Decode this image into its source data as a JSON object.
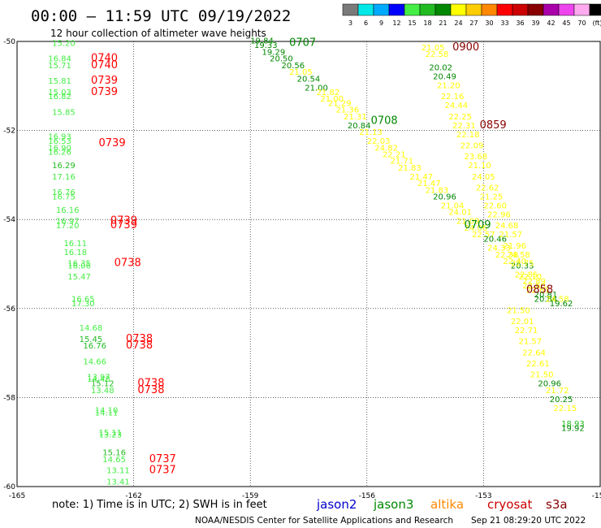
{
  "header": {
    "title": "00:00 – 11:59 UTC 09/19/2022",
    "subtitle": "12 hour collection of altimeter wave heights"
  },
  "colorbar": {
    "ticks": [
      "3",
      "6",
      "9",
      "12",
      "15",
      "18",
      "21",
      "24",
      "27",
      "30",
      "33",
      "36",
      "39",
      "42",
      "45",
      "70",
      "(ft)"
    ],
    "colors": [
      "#7a7a7a",
      "#00e8e8",
      "#00aaff",
      "#0000ff",
      "#44ee44",
      "#22bb22",
      "#008800",
      "#ffff00",
      "#ffcc00",
      "#ff8800",
      "#ff0000",
      "#cc0000",
      "#880000",
      "#aa00aa",
      "#ee44ee",
      "#ffaaee",
      "#000000"
    ]
  },
  "footer": {
    "note": "note:  1) Time is in UTC; 2) SWH is in feet",
    "missions": [
      {
        "name": "jason2",
        "color": "#0000cc"
      },
      {
        "name": "jason3",
        "color": "#008800"
      },
      {
        "name": "altika",
        "color": "#ff8800"
      },
      {
        "name": "cryosat",
        "color": "#cc0000"
      },
      {
        "name": "s3a",
        "color": "#880000"
      }
    ],
    "credit": "NOAA/NESDIS Center for Satellite Applications and Research",
    "timestamp": "Sep 21 08:29:20 UTC 2022"
  },
  "chart_data": {
    "type": "scatter",
    "title": "00:00 – 11:59 UTC 09/19/2022",
    "subtitle": "12 hour collection of altimeter wave heights",
    "xlabel": "",
    "ylabel": "",
    "xlim": [
      -165,
      -150
    ],
    "ylim": [
      -60,
      -50
    ],
    "x_ticks": [
      "-165",
      "-162",
      "-159",
      "-156",
      "-153",
      "-150"
    ],
    "y_ticks": [
      "-50",
      "-52",
      "-54",
      "-56",
      "-58",
      "-60"
    ],
    "grid": true,
    "value_colors": {
      "15": "#44ee44",
      "18": "#22bb22",
      "21": "#008800",
      "24": "#ffff00",
      "27": "#ffcc00",
      "33": "#ff0000",
      "39": "#880000"
    },
    "time_labels": [
      {
        "text": "0740",
        "lon": -163.1,
        "lat": -50.45,
        "color": "#ff0000"
      },
      {
        "text": "0740",
        "lon": -163.1,
        "lat": -50.6,
        "color": "#ff0000"
      },
      {
        "text": "0739",
        "lon": -163.1,
        "lat": -50.95,
        "color": "#ff0000"
      },
      {
        "text": "0739",
        "lon": -163.1,
        "lat": -51.2,
        "color": "#ff0000"
      },
      {
        "text": "0739",
        "lon": -162.9,
        "lat": -52.35,
        "color": "#ff0000"
      },
      {
        "text": "0739",
        "lon": -162.6,
        "lat": -54.1,
        "color": "#ff0000"
      },
      {
        "text": "0739",
        "lon": -162.6,
        "lat": -54.2,
        "color": "#ff0000"
      },
      {
        "text": "0738",
        "lon": -162.5,
        "lat": -55.05,
        "color": "#ff0000"
      },
      {
        "text": "0738",
        "lon": -162.2,
        "lat": -56.75,
        "color": "#ff0000"
      },
      {
        "text": "0738",
        "lon": -162.2,
        "lat": -56.9,
        "color": "#ff0000"
      },
      {
        "text": "0738",
        "lon": -161.9,
        "lat": -57.75,
        "color": "#ff0000"
      },
      {
        "text": "0738",
        "lon": -161.9,
        "lat": -57.9,
        "color": "#ff0000"
      },
      {
        "text": "0737",
        "lon": -161.6,
        "lat": -59.45,
        "color": "#ff0000"
      },
      {
        "text": "0737",
        "lon": -161.6,
        "lat": -59.7,
        "color": "#ff0000"
      },
      {
        "text": "0707",
        "lon": -158.0,
        "lat": -50.1,
        "color": "#008800"
      },
      {
        "text": "0708",
        "lon": -155.9,
        "lat": -51.85,
        "color": "#008800"
      },
      {
        "text": "0709",
        "lon": -153.5,
        "lat": -54.2,
        "color": "#008800"
      },
      {
        "text": "0900",
        "lon": -153.8,
        "lat": -50.2,
        "color": "#880000"
      },
      {
        "text": "0859",
        "lon": -153.1,
        "lat": -51.95,
        "color": "#880000"
      },
      {
        "text": "0858",
        "lon": -151.9,
        "lat": -55.65,
        "color": "#880000"
      }
    ],
    "series": [
      {
        "points": [
          {
            "lon": -164.1,
            "lat": -50.1,
            "v": "15.20",
            "c": "15"
          },
          {
            "lon": -164.2,
            "lat": -50.45,
            "v": "16.84",
            "c": "15"
          },
          {
            "lon": -164.2,
            "lat": -50.6,
            "v": "15.71",
            "c": "15"
          },
          {
            "lon": -164.2,
            "lat": -50.95,
            "v": "15.81",
            "c": "15"
          },
          {
            "lon": -164.2,
            "lat": -51.2,
            "v": "15.03",
            "c": "15"
          },
          {
            "lon": -164.2,
            "lat": -51.3,
            "v": "16.82",
            "c": "15"
          },
          {
            "lon": -164.1,
            "lat": -51.65,
            "v": "15.85",
            "c": "15"
          },
          {
            "lon": -164.2,
            "lat": -52.2,
            "v": "16.93",
            "c": "15"
          },
          {
            "lon": -164.2,
            "lat": -52.3,
            "v": "16.53",
            "c": "15"
          },
          {
            "lon": -164.2,
            "lat": -52.45,
            "v": "16.90",
            "c": "15"
          },
          {
            "lon": -164.2,
            "lat": -52.55,
            "v": "16.26",
            "c": "15"
          },
          {
            "lon": -164.1,
            "lat": -52.85,
            "v": "16.29",
            "c": "18"
          },
          {
            "lon": -164.1,
            "lat": -53.1,
            "v": "17.16",
            "c": "15"
          },
          {
            "lon": -164.1,
            "lat": -53.45,
            "v": "16.76",
            "c": "15"
          },
          {
            "lon": -164.1,
            "lat": -53.55,
            "v": "16.75",
            "c": "15"
          },
          {
            "lon": -164.0,
            "lat": -53.85,
            "v": "16.16",
            "c": "15"
          },
          {
            "lon": -164.0,
            "lat": -54.1,
            "v": "16.97",
            "c": "15"
          },
          {
            "lon": -164.0,
            "lat": -54.2,
            "v": "17.20",
            "c": "15"
          },
          {
            "lon": -163.8,
            "lat": -54.6,
            "v": "16.11",
            "c": "15"
          },
          {
            "lon": -163.8,
            "lat": -54.8,
            "v": "16.18",
            "c": "15"
          },
          {
            "lon": -163.7,
            "lat": -55.05,
            "v": "16.35",
            "c": "15"
          },
          {
            "lon": -163.7,
            "lat": -55.1,
            "v": "16.06",
            "c": "15"
          },
          {
            "lon": -163.7,
            "lat": -55.35,
            "v": "15.47",
            "c": "15"
          },
          {
            "lon": -163.6,
            "lat": -55.85,
            "v": "16.65",
            "c": "15"
          },
          {
            "lon": -163.6,
            "lat": -55.95,
            "v": "17.30",
            "c": "15"
          },
          {
            "lon": -163.4,
            "lat": -56.5,
            "v": "14.68",
            "c": "15"
          },
          {
            "lon": -163.4,
            "lat": -56.75,
            "v": "15.45",
            "c": "18"
          },
          {
            "lon": -163.3,
            "lat": -56.9,
            "v": "16.76",
            "c": "18"
          },
          {
            "lon": -163.3,
            "lat": -57.25,
            "v": "14.66",
            "c": "15"
          },
          {
            "lon": -163.2,
            "lat": -57.6,
            "v": "13.97",
            "c": "15"
          },
          {
            "lon": -163.2,
            "lat": -57.65,
            "v": "14.48",
            "c": "15"
          },
          {
            "lon": -163.1,
            "lat": -57.75,
            "v": "15.12",
            "c": "18"
          },
          {
            "lon": -163.1,
            "lat": -57.9,
            "v": "13.48",
            "c": "15"
          },
          {
            "lon": -163.0,
            "lat": -58.35,
            "v": "14.10",
            "c": "15"
          },
          {
            "lon": -163.0,
            "lat": -58.4,
            "v": "14.11",
            "c": "15"
          },
          {
            "lon": -162.9,
            "lat": -58.85,
            "v": "15.11",
            "c": "15"
          },
          {
            "lon": -162.9,
            "lat": -58.9,
            "v": "13.23",
            "c": "15"
          },
          {
            "lon": -162.8,
            "lat": -59.3,
            "v": "15.16",
            "c": "18"
          },
          {
            "lon": -162.8,
            "lat": -59.45,
            "v": "14.65",
            "c": "15"
          },
          {
            "lon": -162.7,
            "lat": -59.7,
            "v": "13.11",
            "c": "15"
          },
          {
            "lon": -162.7,
            "lat": -59.95,
            "v": "13.41",
            "c": "15"
          }
        ]
      },
      {
        "points": [
          {
            "lon": -159.0,
            "lat": -50.05,
            "v": "19.84",
            "c": "21"
          },
          {
            "lon": -158.9,
            "lat": -50.15,
            "v": "19.33",
            "c": "21"
          },
          {
            "lon": -158.7,
            "lat": -50.3,
            "v": "19.29",
            "c": "21"
          },
          {
            "lon": -158.5,
            "lat": -50.45,
            "v": "20.50",
            "c": "21"
          },
          {
            "lon": -158.2,
            "lat": -50.6,
            "v": "20.56",
            "c": "21"
          },
          {
            "lon": -158.0,
            "lat": -50.75,
            "v": "21.05",
            "c": "24"
          },
          {
            "lon": -157.8,
            "lat": -50.9,
            "v": "20.54",
            "c": "21"
          },
          {
            "lon": -157.6,
            "lat": -51.1,
            "v": "21.00",
            "c": "21"
          },
          {
            "lon": -157.3,
            "lat": -51.2,
            "v": "21.82",
            "c": "24"
          },
          {
            "lon": -157.2,
            "lat": -51.35,
            "v": "21.00",
            "c": "24"
          },
          {
            "lon": -157.0,
            "lat": -51.45,
            "v": "21.29",
            "c": "24"
          },
          {
            "lon": -156.8,
            "lat": -51.6,
            "v": "21.36",
            "c": "24"
          },
          {
            "lon": -156.6,
            "lat": -51.75,
            "v": "21.31",
            "c": "24"
          },
          {
            "lon": -156.5,
            "lat": -51.95,
            "v": "20.84",
            "c": "21"
          },
          {
            "lon": -156.2,
            "lat": -52.1,
            "v": "21.13",
            "c": "24"
          },
          {
            "lon": -156.0,
            "lat": -52.3,
            "v": "22.03",
            "c": "24"
          },
          {
            "lon": -155.8,
            "lat": -52.45,
            "v": "24.82",
            "c": "24"
          },
          {
            "lon": -155.6,
            "lat": -52.6,
            "v": "22.21",
            "c": "24"
          },
          {
            "lon": -155.4,
            "lat": -52.75,
            "v": "21.71",
            "c": "24"
          },
          {
            "lon": -155.2,
            "lat": -52.9,
            "v": "21.83",
            "c": "24"
          },
          {
            "lon": -154.9,
            "lat": -53.1,
            "v": "21.47",
            "c": "24"
          },
          {
            "lon": -154.7,
            "lat": -53.25,
            "v": "21.47",
            "c": "24"
          },
          {
            "lon": -154.5,
            "lat": -53.4,
            "v": "21.83",
            "c": "24"
          },
          {
            "lon": -154.3,
            "lat": -53.55,
            "v": "20.96",
            "c": "21"
          },
          {
            "lon": -154.1,
            "lat": -53.75,
            "v": "21.04",
            "c": "24"
          },
          {
            "lon": -153.9,
            "lat": -53.9,
            "v": "24.01",
            "c": "24"
          },
          {
            "lon": -153.7,
            "lat": -54.1,
            "v": "21.09",
            "c": "24"
          },
          {
            "lon": -153.5,
            "lat": -54.25,
            "v": "24.06",
            "c": "24"
          },
          {
            "lon": -153.3,
            "lat": -54.4,
            "v": "22.57",
            "c": "24"
          },
          {
            "lon": -153.0,
            "lat": -54.5,
            "v": "20.46",
            "c": "21"
          },
          {
            "lon": -152.9,
            "lat": -54.7,
            "v": "24.33",
            "c": "24"
          },
          {
            "lon": -152.7,
            "lat": -54.85,
            "v": "22.38",
            "c": "24"
          },
          {
            "lon": -152.5,
            "lat": -55.0,
            "v": "22.40",
            "c": "24"
          },
          {
            "lon": -152.3,
            "lat": -55.1,
            "v": "20.33",
            "c": "21"
          },
          {
            "lon": -152.2,
            "lat": -55.3,
            "v": "22.85",
            "c": "24"
          },
          {
            "lon": -152.0,
            "lat": -55.45,
            "v": "22.89",
            "c": "24"
          },
          {
            "lon": -151.9,
            "lat": -55.65,
            "v": "22.81",
            "c": "24"
          },
          {
            "lon": -151.7,
            "lat": -55.85,
            "v": "20.84",
            "c": "21"
          }
        ]
      },
      {
        "points": [
          {
            "lon": -154.6,
            "lat": -50.2,
            "v": "21.05",
            "c": "24"
          },
          {
            "lon": -154.5,
            "lat": -50.35,
            "v": "22.58",
            "c": "24"
          },
          {
            "lon": -154.4,
            "lat": -50.65,
            "v": "20.02",
            "c": "21"
          },
          {
            "lon": -154.3,
            "lat": -50.85,
            "v": "20.49",
            "c": "21"
          },
          {
            "lon": -154.2,
            "lat": -51.05,
            "v": "21.20",
            "c": "24"
          },
          {
            "lon": -154.1,
            "lat": -51.3,
            "v": "22.16",
            "c": "24"
          },
          {
            "lon": -154.0,
            "lat": -51.5,
            "v": "24.44",
            "c": "24"
          },
          {
            "lon": -153.9,
            "lat": -51.75,
            "v": "22.25",
            "c": "24"
          },
          {
            "lon": -153.8,
            "lat": -51.95,
            "v": "22.31",
            "c": "24"
          },
          {
            "lon": -153.7,
            "lat": -52.15,
            "v": "22.18",
            "c": "24"
          },
          {
            "lon": -153.6,
            "lat": -52.4,
            "v": "22.09",
            "c": "24"
          },
          {
            "lon": -153.5,
            "lat": -52.65,
            "v": "23.68",
            "c": "24"
          },
          {
            "lon": -153.4,
            "lat": -52.85,
            "v": "21.10",
            "c": "24"
          },
          {
            "lon": -153.3,
            "lat": -53.1,
            "v": "24.05",
            "c": "24"
          },
          {
            "lon": -153.2,
            "lat": -53.35,
            "v": "22.62",
            "c": "24"
          },
          {
            "lon": -153.1,
            "lat": -53.55,
            "v": "21.25",
            "c": "24"
          },
          {
            "lon": -153.0,
            "lat": -53.75,
            "v": "22.60",
            "c": "24"
          },
          {
            "lon": -152.9,
            "lat": -53.95,
            "v": "22.96",
            "c": "24"
          },
          {
            "lon": -152.7,
            "lat": -54.2,
            "v": "24.68",
            "c": "24"
          },
          {
            "lon": -152.6,
            "lat": -54.4,
            "v": "21.57",
            "c": "24"
          },
          {
            "lon": -152.5,
            "lat": -54.65,
            "v": "21.96",
            "c": "24"
          },
          {
            "lon": -152.4,
            "lat": -54.85,
            "v": "24.58",
            "c": "24"
          },
          {
            "lon": -152.3,
            "lat": -55.05,
            "v": "22.75",
            "c": "24"
          },
          {
            "lon": -152.1,
            "lat": -55.35,
            "v": "22.10",
            "c": "24"
          },
          {
            "lon": -152.0,
            "lat": -55.55,
            "v": "22.60",
            "c": "24"
          },
          {
            "lon": -151.7,
            "lat": -55.75,
            "v": "20.81",
            "c": "21"
          },
          {
            "lon": -151.4,
            "lat": -55.85,
            "v": "24.58",
            "c": "24"
          },
          {
            "lon": -151.3,
            "lat": -55.95,
            "v": "19.62",
            "c": "21"
          },
          {
            "lon": -152.4,
            "lat": -56.1,
            "v": "21.50",
            "c": "24"
          },
          {
            "lon": -152.3,
            "lat": -56.35,
            "v": "22.01",
            "c": "24"
          },
          {
            "lon": -152.2,
            "lat": -56.55,
            "v": "22.71",
            "c": "24"
          },
          {
            "lon": -152.1,
            "lat": -56.8,
            "v": "21.57",
            "c": "24"
          },
          {
            "lon": -152.0,
            "lat": -57.05,
            "v": "22.64",
            "c": "24"
          },
          {
            "lon": -151.9,
            "lat": -57.3,
            "v": "22.61",
            "c": "24"
          },
          {
            "lon": -151.8,
            "lat": -57.55,
            "v": "21.50",
            "c": "24"
          },
          {
            "lon": -151.6,
            "lat": -57.75,
            "v": "20.96",
            "c": "21"
          },
          {
            "lon": -151.4,
            "lat": -57.9,
            "v": "21.72",
            "c": "24"
          },
          {
            "lon": -151.3,
            "lat": -58.1,
            "v": "20.25",
            "c": "21"
          },
          {
            "lon": -151.2,
            "lat": -58.3,
            "v": "22.15",
            "c": "24"
          },
          {
            "lon": -151.0,
            "lat": -58.65,
            "v": "18.93",
            "c": "18"
          },
          {
            "lon": -151.0,
            "lat": -58.75,
            "v": "19.92",
            "c": "21"
          }
        ]
      }
    ]
  }
}
